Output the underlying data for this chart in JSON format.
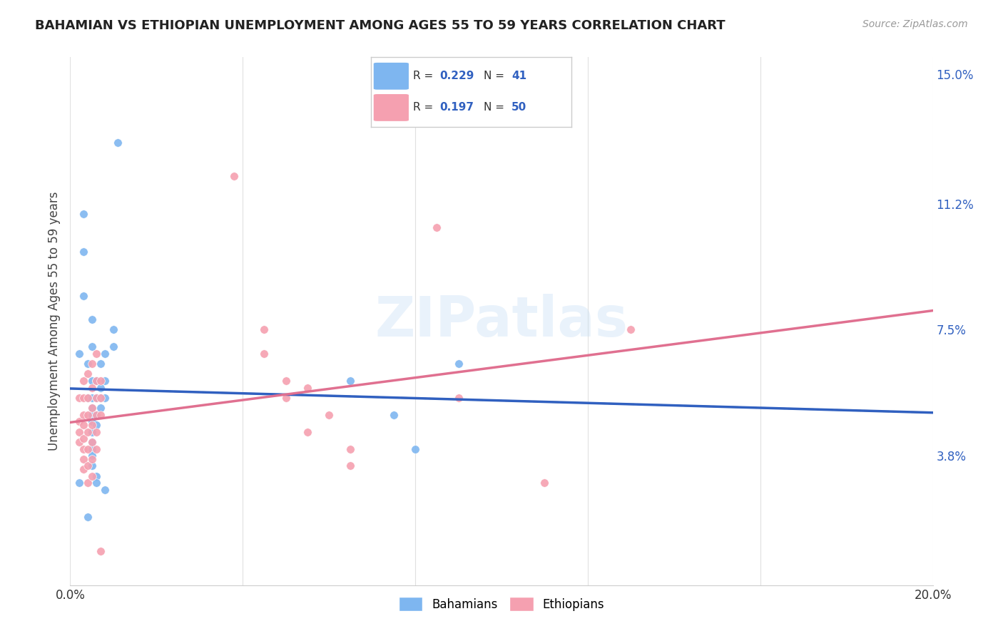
{
  "title": "BAHAMIAN VS ETHIOPIAN UNEMPLOYMENT AMONG AGES 55 TO 59 YEARS CORRELATION CHART",
  "source": "Source: ZipAtlas.com",
  "ylabel": "Unemployment Among Ages 55 to 59 years",
  "x_min": 0.0,
  "x_max": 0.2,
  "y_min": 0.0,
  "y_max": 0.155,
  "x_ticks": [
    0.0,
    0.04,
    0.08,
    0.12,
    0.16,
    0.2
  ],
  "x_tick_labels": [
    "0.0%",
    "",
    "",
    "",
    "",
    "20.0%"
  ],
  "y_tick_labels_right": [
    "3.8%",
    "7.5%",
    "11.2%",
    "15.0%"
  ],
  "y_tick_vals_right": [
    0.038,
    0.075,
    0.112,
    0.15
  ],
  "bahamian_color": "#7EB6F0",
  "ethiopian_color": "#F5A0B0",
  "bahamian_line_color": "#3060C0",
  "ethiopian_line_color": "#E07090",
  "dashed_line_color": "#BBBBBB",
  "R_bahamian": 0.229,
  "N_bahamian": 41,
  "R_ethiopian": 0.197,
  "N_ethiopian": 50,
  "bahamian_scatter": [
    [
      0.002,
      0.068
    ],
    [
      0.003,
      0.109
    ],
    [
      0.003,
      0.098
    ],
    [
      0.003,
      0.085
    ],
    [
      0.004,
      0.065
    ],
    [
      0.004,
      0.055
    ],
    [
      0.005,
      0.078
    ],
    [
      0.005,
      0.07
    ],
    [
      0.005,
      0.06
    ],
    [
      0.005,
      0.055
    ],
    [
      0.005,
      0.052
    ],
    [
      0.005,
      0.05
    ],
    [
      0.005,
      0.048
    ],
    [
      0.005,
      0.045
    ],
    [
      0.005,
      0.042
    ],
    [
      0.005,
      0.04
    ],
    [
      0.005,
      0.038
    ],
    [
      0.005,
      0.035
    ],
    [
      0.006,
      0.032
    ],
    [
      0.006,
      0.03
    ],
    [
      0.006,
      0.05
    ],
    [
      0.006,
      0.047
    ],
    [
      0.006,
      0.06
    ],
    [
      0.006,
      0.055
    ],
    [
      0.007,
      0.065
    ],
    [
      0.007,
      0.058
    ],
    [
      0.007,
      0.055
    ],
    [
      0.007,
      0.052
    ],
    [
      0.008,
      0.068
    ],
    [
      0.008,
      0.06
    ],
    [
      0.008,
      0.055
    ],
    [
      0.008,
      0.028
    ],
    [
      0.01,
      0.075
    ],
    [
      0.01,
      0.07
    ],
    [
      0.011,
      0.13
    ],
    [
      0.065,
      0.06
    ],
    [
      0.075,
      0.05
    ],
    [
      0.08,
      0.04
    ],
    [
      0.002,
      0.03
    ],
    [
      0.004,
      0.02
    ],
    [
      0.09,
      0.065
    ]
  ],
  "ethiopian_scatter": [
    [
      0.002,
      0.055
    ],
    [
      0.002,
      0.048
    ],
    [
      0.002,
      0.045
    ],
    [
      0.002,
      0.042
    ],
    [
      0.003,
      0.06
    ],
    [
      0.003,
      0.055
    ],
    [
      0.003,
      0.05
    ],
    [
      0.003,
      0.047
    ],
    [
      0.003,
      0.043
    ],
    [
      0.003,
      0.04
    ],
    [
      0.003,
      0.037
    ],
    [
      0.003,
      0.034
    ],
    [
      0.004,
      0.062
    ],
    [
      0.004,
      0.055
    ],
    [
      0.004,
      0.05
    ],
    [
      0.004,
      0.045
    ],
    [
      0.004,
      0.04
    ],
    [
      0.004,
      0.035
    ],
    [
      0.004,
      0.03
    ],
    [
      0.005,
      0.065
    ],
    [
      0.005,
      0.058
    ],
    [
      0.005,
      0.052
    ],
    [
      0.005,
      0.047
    ],
    [
      0.005,
      0.042
    ],
    [
      0.005,
      0.037
    ],
    [
      0.005,
      0.032
    ],
    [
      0.006,
      0.068
    ],
    [
      0.006,
      0.06
    ],
    [
      0.006,
      0.055
    ],
    [
      0.006,
      0.05
    ],
    [
      0.006,
      0.045
    ],
    [
      0.006,
      0.04
    ],
    [
      0.007,
      0.06
    ],
    [
      0.007,
      0.055
    ],
    [
      0.007,
      0.05
    ],
    [
      0.007,
      0.01
    ],
    [
      0.045,
      0.075
    ],
    [
      0.045,
      0.068
    ],
    [
      0.05,
      0.06
    ],
    [
      0.05,
      0.055
    ],
    [
      0.055,
      0.058
    ],
    [
      0.055,
      0.045
    ],
    [
      0.06,
      0.05
    ],
    [
      0.065,
      0.04
    ],
    [
      0.065,
      0.035
    ],
    [
      0.085,
      0.105
    ],
    [
      0.09,
      0.055
    ],
    [
      0.13,
      0.075
    ],
    [
      0.11,
      0.03
    ],
    [
      0.038,
      0.12
    ]
  ],
  "watermark": "ZIPatlas",
  "background_color": "#FFFFFF",
  "grid_color": "#E0E0E0"
}
